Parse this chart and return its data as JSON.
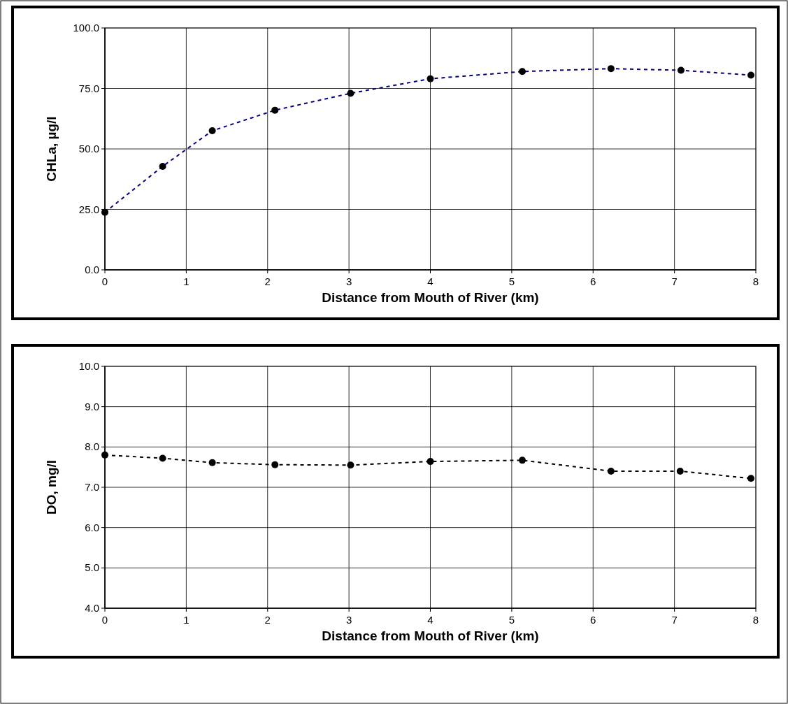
{
  "chart_data": [
    {
      "type": "line",
      "xlabel": "Distance from Mouth of River (km)",
      "ylabel": "CHLa, µg/l",
      "x": [
        0,
        0.71,
        1.32,
        2.09,
        3.02,
        4.0,
        5.13,
        6.22,
        7.08,
        7.94
      ],
      "series": [
        {
          "color": "#000080",
          "values": [
            23.8,
            42.8,
            57.5,
            66.0,
            73.0,
            79.0,
            82.0,
            83.2,
            82.5,
            80.5
          ]
        }
      ],
      "xlim": [
        0,
        8
      ],
      "xticks": [
        0,
        1,
        2,
        3,
        4,
        5,
        6,
        7,
        8
      ],
      "ylim": [
        0,
        100
      ],
      "yticks": [
        {
          "value": 0,
          "label": "0.0"
        },
        {
          "value": 25,
          "label": "25.0"
        },
        {
          "value": 50,
          "label": "50.0"
        },
        {
          "value": 75,
          "label": "75.0"
        },
        {
          "value": 100,
          "label": "100.0"
        }
      ],
      "grid": true,
      "marker": "circle",
      "line_style": "dashed"
    },
    {
      "type": "line",
      "xlabel": "Distance from Mouth of River (km)",
      "ylabel": "DO, mg/l",
      "x": [
        0,
        0.71,
        1.32,
        2.09,
        3.02,
        4.0,
        5.13,
        6.22,
        7.07,
        7.94
      ],
      "series": [
        {
          "color": "#000000",
          "values": [
            7.8,
            7.72,
            7.61,
            7.56,
            7.55,
            7.64,
            7.67,
            7.4,
            7.4,
            7.22
          ]
        }
      ],
      "xlim": [
        0,
        8
      ],
      "xticks": [
        0,
        1,
        2,
        3,
        4,
        5,
        6,
        7,
        8
      ],
      "ylim": [
        4,
        10
      ],
      "yticks": [
        {
          "value": 4,
          "label": "4.0"
        },
        {
          "value": 5,
          "label": "5.0"
        },
        {
          "value": 6,
          "label": "6.0"
        },
        {
          "value": 7,
          "label": "7.0"
        },
        {
          "value": 8,
          "label": "8.0"
        },
        {
          "value": 9,
          "label": "9.0"
        },
        {
          "value": 10,
          "label": "10.0"
        }
      ],
      "grid": true,
      "marker": "circle",
      "line_style": "dashed"
    }
  ]
}
